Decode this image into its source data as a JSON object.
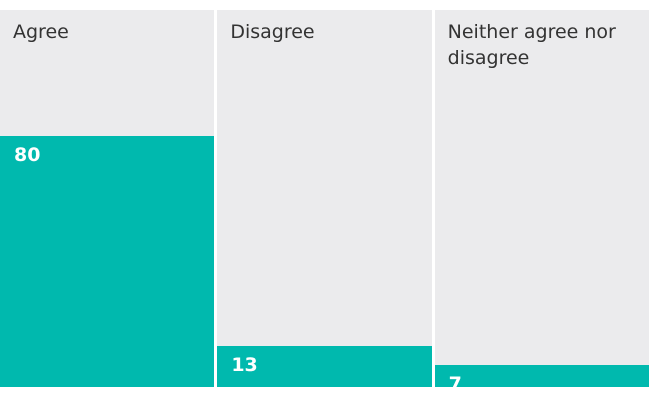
{
  "colors": {
    "bar": "#00b9ae",
    "panel": "#ebebed",
    "label": "#333333",
    "value": "#ffffff"
  },
  "chart_data": {
    "type": "bar",
    "categories": [
      "Agree",
      "Disagree",
      "Neither agree nor disagree"
    ],
    "values": [
      80,
      13,
      7
    ],
    "ylim": [
      0,
      100
    ],
    "grid": false,
    "title": "",
    "xlabel": "",
    "ylabel": ""
  }
}
